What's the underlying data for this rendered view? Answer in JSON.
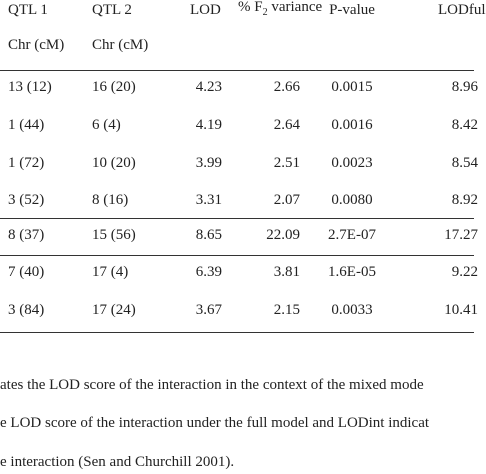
{
  "table": {
    "header": [
      [
        "QTL 1",
        "QTL 2",
        "LOD",
        [
          "% F",
          "2",
          " variance"
        ],
        "P-value",
        "LODful"
      ],
      [
        "Chr (cM)",
        "Chr (cM)"
      ]
    ],
    "rows": [
      [
        "13 (12)",
        "16 (20)",
        "4.23",
        "2.66",
        "0.0015",
        "8.96"
      ],
      [
        "1 (44)",
        "6 (4)",
        "4.19",
        "2.64",
        "0.0016",
        "8.42"
      ],
      [
        "1 (72)",
        "10 (20)",
        "3.99",
        "2.51",
        "0.0023",
        "8.54"
      ],
      [
        "3 (52)",
        "8 (16)",
        "3.31",
        "2.07",
        "0.0080",
        "8.92"
      ],
      [
        "8 (37)",
        "15 (56)",
        "8.65",
        "22.09",
        "2.7E-07",
        "17.27"
      ],
      [
        "7 (40)",
        "17 (4)",
        "6.39",
        "3.81",
        "1.6E-05",
        "9.22"
      ],
      [
        "3 (84)",
        "17 (24)",
        "3.67",
        "2.15",
        "0.0033",
        "10.41"
      ]
    ]
  },
  "notes": [
    "ates the LOD score of the interaction in the context of the mixed mode",
    "e LOD score of the interaction under the full model and LODint indicat",
    "e interaction (Sen and Churchill 2001)."
  ]
}
